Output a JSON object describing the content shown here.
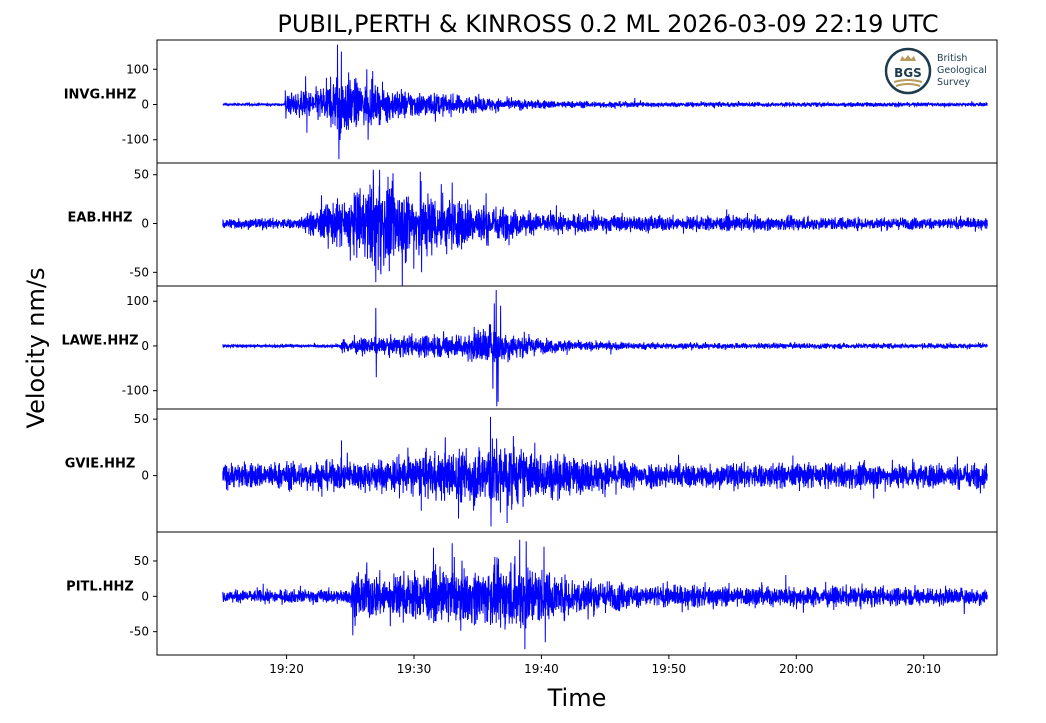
{
  "chart_data": {
    "type": "line",
    "title": "PUBIL,PERTH & KINROSS 0.2 ML   2026-03-09 22:19 UTC",
    "xlabel": "Time",
    "ylabel": "Velocity nm/s",
    "xlim": [
      "19:09:50",
      "20:15:45"
    ],
    "xticks": [
      "19:20",
      "19:30",
      "19:40",
      "19:50",
      "20:00",
      "20:10"
    ],
    "trace_start": "19:15",
    "trace_end": "20:15",
    "line_color": "#0000ff",
    "grid": false,
    "logo": {
      "text": "BGS",
      "name_lines": [
        "British",
        "Geological",
        "Survey"
      ],
      "colors": {
        "ring": "#1d3b4c",
        "gold": "#b89a5a"
      }
    },
    "series": [
      {
        "name": "INVG.HHZ",
        "ylim": [
          -166,
          183
        ],
        "yticks": [
          100,
          0,
          -100
        ],
        "envelope": [
          [
            "19:15",
            3
          ],
          [
            "19:19.8",
            3
          ],
          [
            "19:20",
            28
          ],
          [
            "19:22",
            35
          ],
          [
            "19:23.5",
            60
          ],
          [
            "19:24.2",
            90
          ],
          [
            "19:26",
            50
          ],
          [
            "19:30",
            35
          ],
          [
            "19:33",
            25
          ],
          [
            "19:37",
            15
          ],
          [
            "19:42",
            9
          ],
          [
            "19:50",
            6
          ],
          [
            "20:15",
            5
          ]
        ],
        "peaks": [
          [
            "19:19.9",
            40
          ],
          [
            "19:19.95",
            -40
          ],
          [
            "19:21.5",
            80
          ],
          [
            "19:21.6",
            -80
          ],
          [
            "19:24.0",
            170
          ],
          [
            "19:24.1",
            -155
          ],
          [
            "19:24.3",
            150
          ],
          [
            "19:26.4",
            -100
          ],
          [
            "19:26.3",
            100
          ]
        ]
      },
      {
        "name": "EAB.HHZ",
        "ylim": [
          -64,
          62
        ],
        "yticks": [
          50,
          0,
          -50
        ],
        "envelope": [
          [
            "19:15",
            5
          ],
          [
            "19:21",
            5
          ],
          [
            "19:23",
            18
          ],
          [
            "19:25",
            25
          ],
          [
            "19:27",
            42
          ],
          [
            "19:29",
            35
          ],
          [
            "19:33",
            25
          ],
          [
            "19:37",
            15
          ],
          [
            "19:40",
            9
          ],
          [
            "19:50",
            7
          ],
          [
            "20:15",
            5
          ]
        ],
        "peaks": [
          [
            "19:25",
            -38
          ],
          [
            "19:26.8",
            55
          ],
          [
            "19:27.0",
            -60
          ],
          [
            "19:27.3",
            55
          ],
          [
            "19:27.4",
            -52
          ],
          [
            "19:30.5",
            53
          ],
          [
            "19:30.6",
            -50
          ],
          [
            "19:33",
            42
          ]
        ]
      },
      {
        "name": "LAWE.HHZ",
        "ylim": [
          -141,
          134
        ],
        "yticks": [
          100,
          0,
          -100
        ],
        "envelope": [
          [
            "19:15",
            3
          ],
          [
            "19:24.2",
            3
          ],
          [
            "19:24.4",
            15
          ],
          [
            "19:27",
            15
          ],
          [
            "19:30",
            22
          ],
          [
            "19:34",
            25
          ],
          [
            "19:36",
            45
          ],
          [
            "19:37.5",
            28
          ],
          [
            "19:40",
            15
          ],
          [
            "19:44",
            9
          ],
          [
            "19:50",
            6
          ],
          [
            "20:15",
            5
          ]
        ],
        "peaks": [
          [
            "19:27.0",
            85
          ],
          [
            "19:27.05",
            -70
          ],
          [
            "19:36.3",
            95
          ],
          [
            "19:36.45",
            125
          ],
          [
            "19:36.5",
            -135
          ],
          [
            "19:36.6",
            -125
          ],
          [
            "19:36.8",
            90
          ]
        ]
      },
      {
        "name": "GVIE.HHZ",
        "ylim": [
          -50,
          59
        ],
        "yticks": [
          50,
          0
        ],
        "envelope": [
          [
            "19:15",
            10
          ],
          [
            "19:26",
            12
          ],
          [
            "19:30",
            16
          ],
          [
            "19:34",
            22
          ],
          [
            "19:36.5",
            28
          ],
          [
            "19:39",
            20
          ],
          [
            "19:43",
            14
          ],
          [
            "19:50",
            10
          ],
          [
            "20:15",
            10
          ]
        ],
        "peaks": [
          [
            "19:36.0",
            52
          ],
          [
            "19:36.05",
            -45
          ],
          [
            "19:37.3",
            -42
          ],
          [
            "19:37.8",
            35
          ],
          [
            "19:33.5",
            -38
          ]
        ]
      },
      {
        "name": "PITL.HHZ",
        "ylim": [
          -83,
          91
        ],
        "yticks": [
          50,
          0,
          -50
        ],
        "envelope": [
          [
            "19:15",
            8
          ],
          [
            "19:25",
            9
          ],
          [
            "19:25.2",
            30
          ],
          [
            "19:28",
            28
          ],
          [
            "19:32",
            32
          ],
          [
            "19:35",
            35
          ],
          [
            "19:38.5",
            45
          ],
          [
            "19:41",
            28
          ],
          [
            "19:45",
            20
          ],
          [
            "19:48",
            14
          ],
          [
            "20:15",
            11
          ]
        ],
        "peaks": [
          [
            "19:25.2",
            -55
          ],
          [
            "19:26.3",
            48
          ],
          [
            "19:33.0",
            75
          ],
          [
            "19:38.3",
            80
          ],
          [
            "19:38.7",
            -75
          ],
          [
            "19:38.8",
            78
          ],
          [
            "19:40.3",
            -65
          ],
          [
            "19:40.2",
            70
          ]
        ]
      }
    ]
  }
}
